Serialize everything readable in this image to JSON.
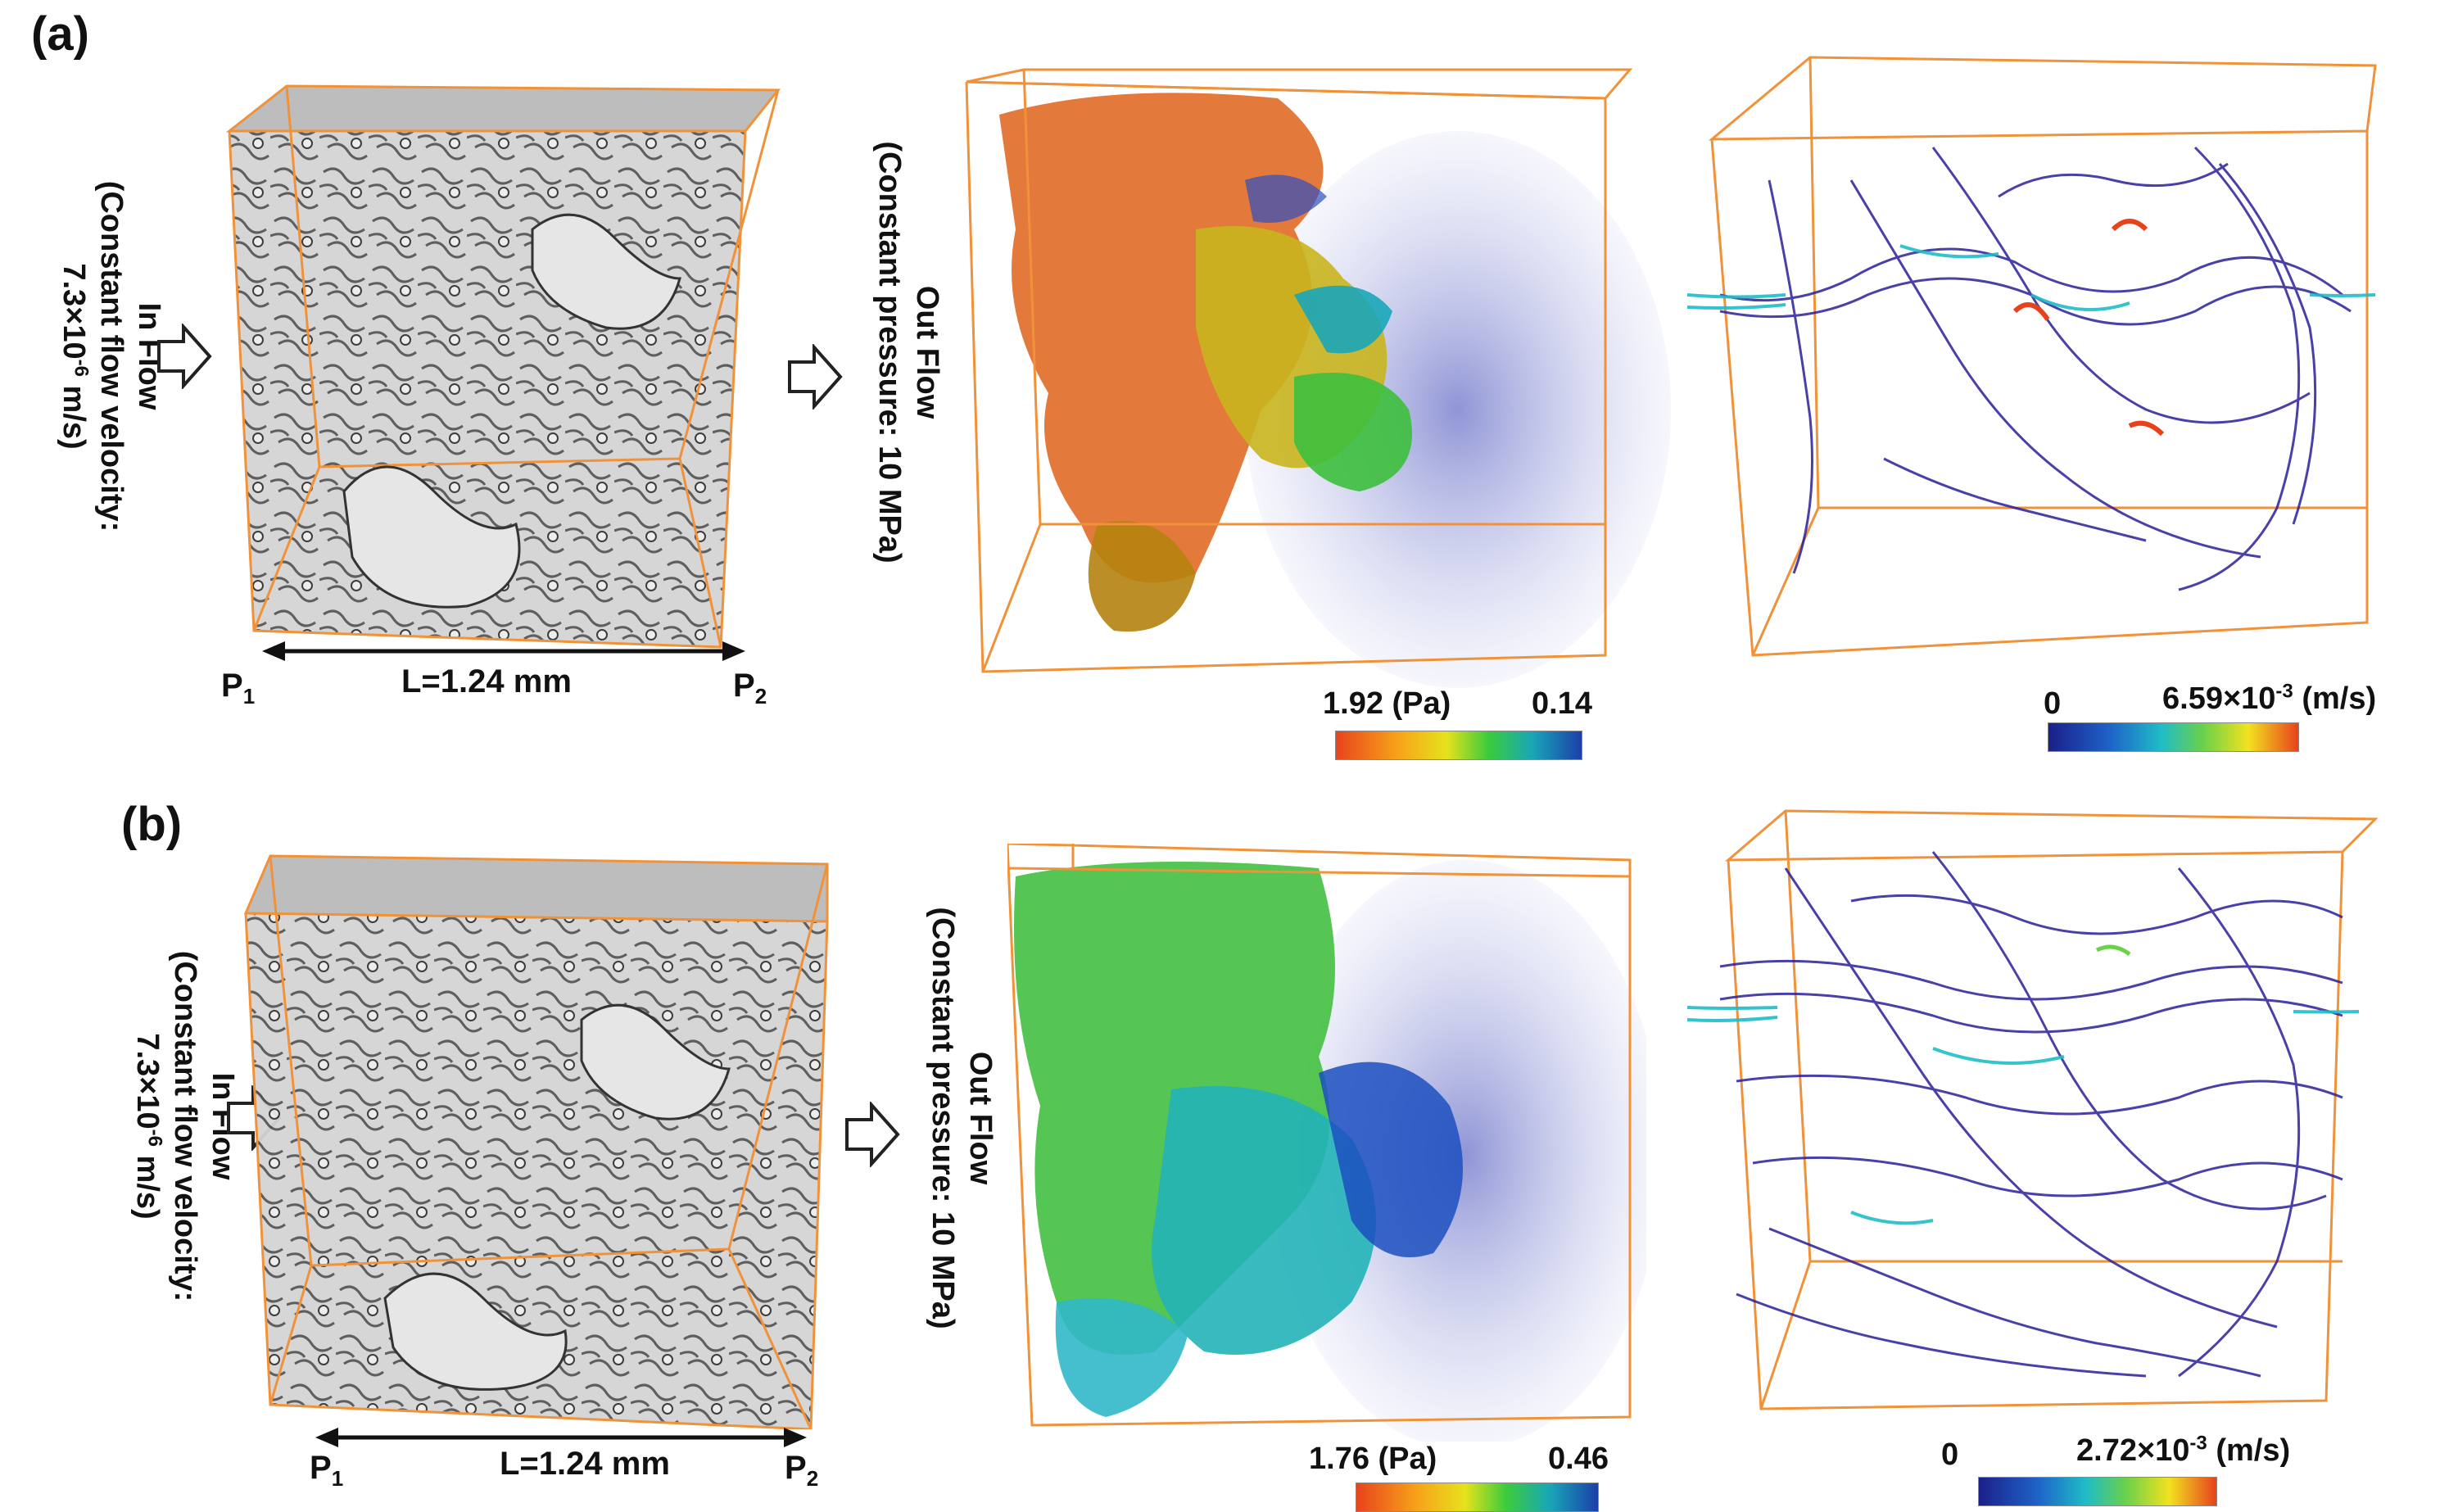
{
  "figure": {
    "panels": [
      {
        "label": "(a)",
        "inflow": {
          "line1": "In Flow",
          "line2": "(Constant flow velocity:",
          "line3_prefix": "7.3×10",
          "line3_exp": "-6",
          "line3_suffix": " m/s)"
        },
        "outflow": {
          "line1": "Out Flow",
          "line2": "(Constant pressure: 10 MPa)"
        },
        "length_label": "L=1.24 mm",
        "p1_base": "P",
        "p1_sub": "1",
        "p2_base": "P",
        "p2_sub": "2",
        "pressure_scale": {
          "max": "1.92 (Pa)",
          "min": "0.14"
        },
        "velocity_scale": {
          "min": "0",
          "max_prefix": "6.59×10",
          "max_exp": "-3",
          "max_unit": " (m/s)"
        }
      },
      {
        "label": "(b)",
        "inflow": {
          "line1": "In Flow",
          "line2": "(Constant flow velocity:",
          "line3_prefix": "7.3×10",
          "line3_exp": "-6",
          "line3_suffix": " m/s)"
        },
        "outflow": {
          "line1": "Out Flow",
          "line2": "(Constant pressure: 10 MPa)"
        },
        "length_label": "L=1.24 mm",
        "p1_base": "P",
        "p1_sub": "1",
        "p2_base": "P",
        "p2_sub": "2",
        "pressure_scale": {
          "max": "1.76 (Pa)",
          "min": "0.46"
        },
        "velocity_scale": {
          "min": "0",
          "max_prefix": "2.72×10",
          "max_exp": "-3",
          "max_unit": " (m/s)"
        }
      }
    ],
    "colors": {
      "box_edge": "#f0923a",
      "rock_gray": "#c9c9c9",
      "pressure_colormap": [
        "#e8431c",
        "#f7a21a",
        "#e6e21c",
        "#3ccb3c",
        "#19a6b8",
        "#1b3fa8"
      ],
      "velocity_colormap": [
        "#1b1f8a",
        "#1e64c8",
        "#1fbcc8",
        "#6bd14a",
        "#f2e21f",
        "#e8421c"
      ]
    }
  }
}
